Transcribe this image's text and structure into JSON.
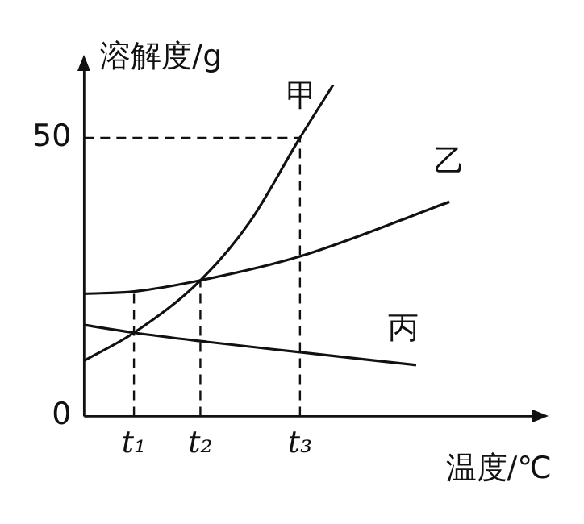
{
  "chart_data": {
    "type": "line",
    "xlabel": "温度/℃",
    "ylabel": "溶解度/g",
    "ylim": [
      0,
      62
    ],
    "yticks": [
      0,
      50
    ],
    "categories": [
      null,
      null,
      null,
      "t₁",
      null,
      null,
      null,
      "t₂",
      null,
      null,
      null,
      null,
      null,
      "t₃",
      null,
      null,
      null,
      null,
      null,
      null,
      null,
      null,
      null,
      null,
      null,
      null,
      null,
      null
    ],
    "series": [
      {
        "name": "甲",
        "color": "#111111",
        "values": [
          10,
          null,
          null,
          15,
          null,
          null,
          null,
          24.4,
          null,
          null,
          35,
          null,
          null,
          50,
          null,
          59.5,
          null,
          null,
          null,
          null,
          null,
          null,
          null,
          null,
          null,
          null,
          null,
          null
        ]
      },
      {
        "name": "乙",
        "color": "#111111",
        "values": [
          22,
          null,
          null,
          22.4,
          null,
          null,
          null,
          24.4,
          null,
          null,
          null,
          null,
          null,
          28.7,
          null,
          null,
          null,
          null,
          null,
          null,
          null,
          null,
          38.5,
          null,
          null,
          null,
          null,
          null
        ]
      },
      {
        "name": "丙",
        "color": "#111111",
        "values": [
          16.4,
          null,
          null,
          15,
          null,
          null,
          null,
          13.5,
          null,
          null,
          null,
          null,
          null,
          11.5,
          null,
          null,
          null,
          null,
          null,
          null,
          9.2,
          null,
          null,
          null,
          null,
          null,
          null,
          null
        ]
      }
    ],
    "ref_lines": [
      {
        "axis": "x",
        "value": "t₁",
        "line_style": "dashed"
      },
      {
        "axis": "x",
        "value": "t₂",
        "line_style": "dashed"
      },
      {
        "axis": "x",
        "value": "t₃",
        "line_style": "dashed"
      },
      {
        "axis": "y",
        "value": 50,
        "line_style": "dashed"
      }
    ],
    "legend": false,
    "marker": "none",
    "line_style": "solid"
  }
}
